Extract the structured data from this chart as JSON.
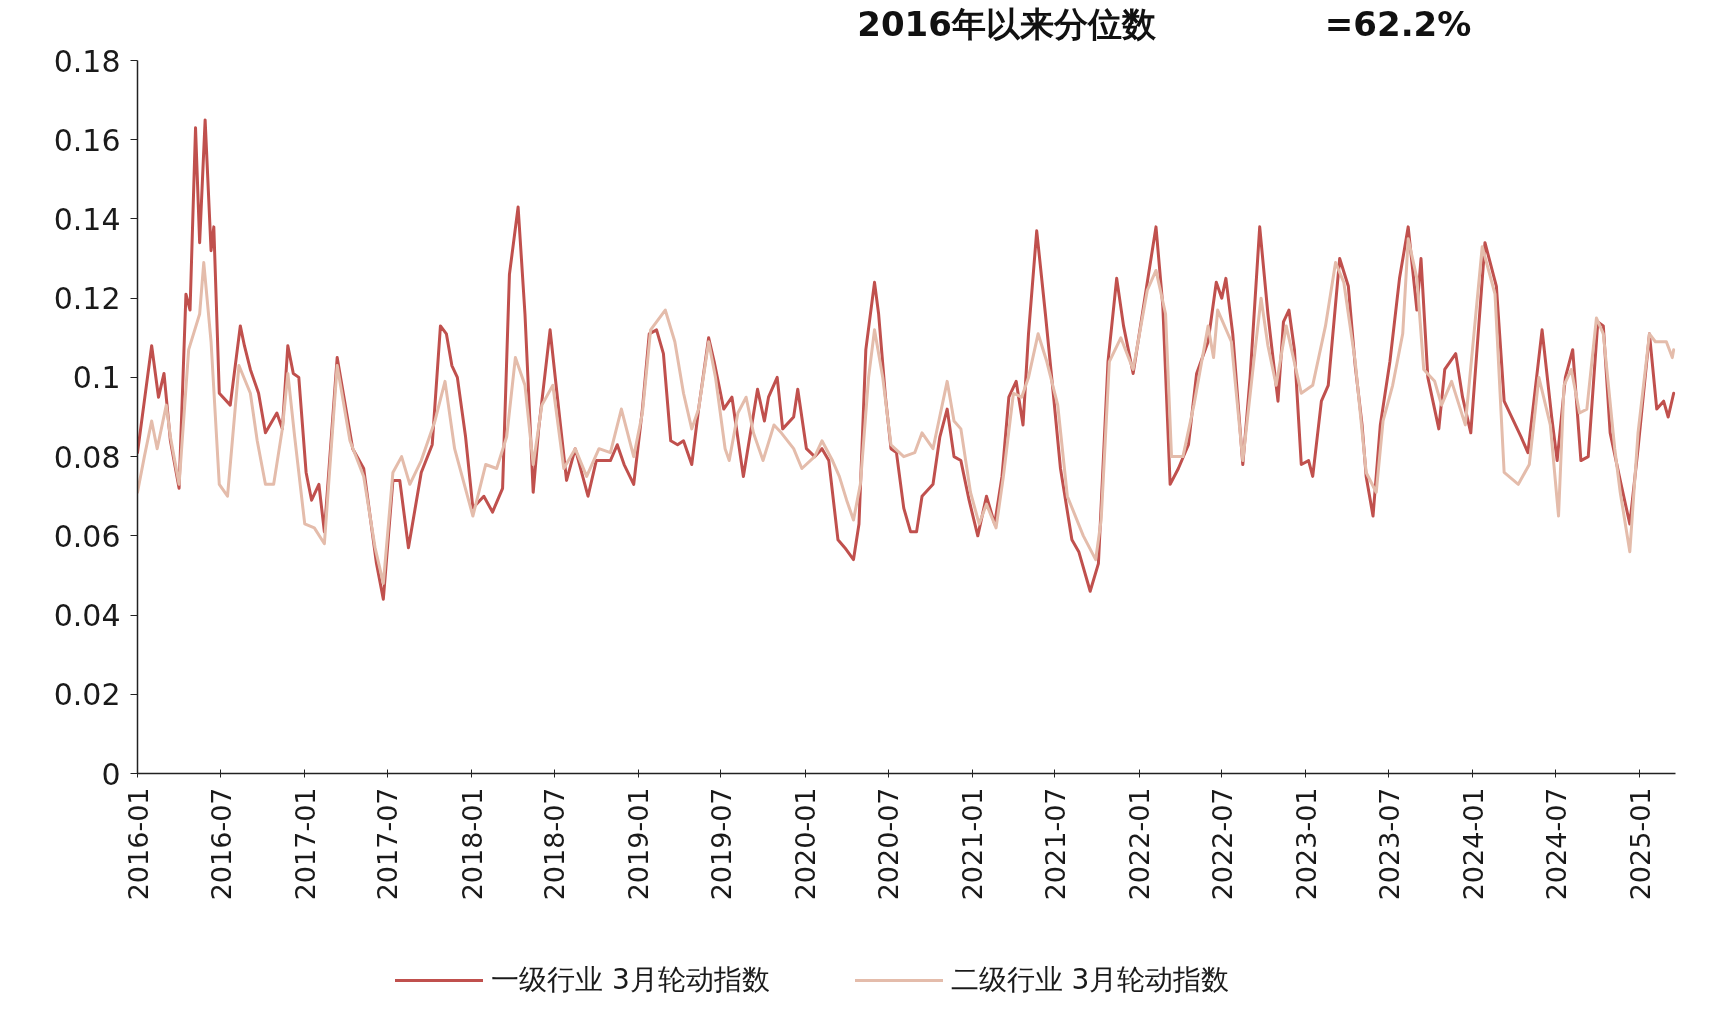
{
  "chart_data": {
    "type": "line",
    "title": "2016年以来分位数",
    "annotations": [
      "=62.2%"
    ],
    "xlim": [
      "2016-01-01",
      "2025-03-20"
    ],
    "xticks": [
      "2016-01",
      "2016-07",
      "2017-01",
      "2017-07",
      "2018-01",
      "2018-07",
      "2019-01",
      "2019-07",
      "2020-01",
      "2020-07",
      "2021-01",
      "2021-07",
      "2022-01",
      "2022-07",
      "2023-01",
      "2023-07",
      "2024-01",
      "2024-07",
      "2025-01"
    ],
    "ylim": [
      0,
      0.18
    ],
    "yticks": [
      0,
      0.02,
      0.04,
      0.06,
      0.08,
      0.1,
      0.12,
      0.14,
      0.16,
      0.18
    ],
    "legend": "bottom",
    "line_style": "solid",
    "series": [
      {
        "name": "一级行业 3月轮动指数",
        "color": "#c0504d",
        "x": [
          "2016-01-01",
          "2016-02-01",
          "2016-02-16",
          "2016-02-28",
          "2016-03-13",
          "2016-04-01",
          "2016-04-16",
          "2016-04-25",
          "2016-05-07",
          "2016-05-16",
          "2016-05-28",
          "2016-06-10",
          "2016-06-16",
          "2016-06-28",
          "2016-07-22",
          "2016-08-13",
          "2016-08-22",
          "2016-09-04",
          "2016-09-22",
          "2016-10-07",
          "2016-11-01",
          "2016-11-13",
          "2016-11-25",
          "2016-12-07",
          "2016-12-19",
          "2017-01-04",
          "2017-01-16",
          "2017-02-01",
          "2017-02-13",
          "2017-03-13",
          "2017-04-16",
          "2017-05-10",
          "2017-06-07",
          "2017-06-22",
          "2017-07-13",
          "2017-07-28",
          "2017-08-16",
          "2017-09-13",
          "2017-10-07",
          "2017-10-25",
          "2017-11-07",
          "2017-11-19",
          "2017-12-01",
          "2017-12-19",
          "2018-01-04",
          "2018-01-28",
          "2018-02-16",
          "2018-03-10",
          "2018-03-25",
          "2018-04-13",
          "2018-04-28",
          "2018-05-16",
          "2018-05-28",
          "2018-06-22",
          "2018-07-07",
          "2018-07-28",
          "2018-08-16",
          "2018-09-13",
          "2018-10-01",
          "2018-11-01",
          "2018-11-16",
          "2018-12-01",
          "2018-12-22",
          "2019-01-10",
          "2019-01-25",
          "2019-02-10",
          "2019-02-25",
          "2019-03-13",
          "2019-03-28",
          "2019-04-10",
          "2019-04-28",
          "2019-05-13",
          "2019-06-04",
          "2019-06-16",
          "2019-07-07",
          "2019-07-25",
          "2019-08-19",
          "2019-09-19",
          "2019-10-04",
          "2019-10-13",
          "2019-11-01",
          "2019-11-13",
          "2019-12-07",
          "2019-12-16",
          "2020-01-04",
          "2020-01-22",
          "2020-02-07",
          "2020-02-22",
          "2020-03-13",
          "2020-03-28",
          "2020-04-16",
          "2020-04-28",
          "2020-05-13",
          "2020-06-01",
          "2020-06-10",
          "2020-06-25",
          "2020-07-07",
          "2020-07-19",
          "2020-08-04",
          "2020-08-19",
          "2020-09-01",
          "2020-09-13",
          "2020-10-07",
          "2020-10-22",
          "2020-11-07",
          "2020-11-22",
          "2020-12-07",
          "2020-12-25",
          "2021-01-13",
          "2021-02-01",
          "2021-02-19",
          "2021-03-07",
          "2021-03-22",
          "2021-04-07",
          "2021-04-22",
          "2021-05-04",
          "2021-05-22",
          "2021-06-10",
          "2021-06-28",
          "2021-07-13",
          "2021-08-07",
          "2021-08-22",
          "2021-09-16",
          "2021-10-04",
          "2021-10-25",
          "2021-11-13",
          "2021-11-28",
          "2021-12-19",
          "2022-01-19",
          "2022-02-07",
          "2022-02-22",
          "2022-03-10",
          "2022-03-28",
          "2022-04-19",
          "2022-05-07",
          "2022-06-01",
          "2022-06-19",
          "2022-07-01",
          "2022-07-10",
          "2022-07-25",
          "2022-08-16",
          "2022-09-01",
          "2022-09-22",
          "2022-10-10",
          "2022-11-01",
          "2022-11-13",
          "2022-11-25",
          "2022-12-07",
          "2022-12-22",
          "2023-01-07",
          "2023-01-16",
          "2023-02-04",
          "2023-02-19",
          "2023-03-16",
          "2023-04-04",
          "2023-04-19",
          "2023-05-04",
          "2023-05-13",
          "2023-05-28",
          "2023-06-13",
          "2023-07-04",
          "2023-07-25",
          "2023-08-13",
          "2023-09-01",
          "2023-09-10",
          "2023-09-25",
          "2023-10-19",
          "2023-11-01",
          "2023-11-25",
          "2023-12-10",
          "2023-12-28",
          "2024-01-28",
          "2024-02-22",
          "2024-03-10",
          "2024-04-16",
          "2024-05-01",
          "2024-06-01",
          "2024-06-22",
          "2024-07-04",
          "2024-07-22",
          "2024-08-07",
          "2024-08-25",
          "2024-09-10",
          "2024-10-01",
          "2024-10-13",
          "2024-10-28",
          "2024-11-19",
          "2024-12-10",
          "2024-12-28",
          "2025-01-22",
          "2025-02-07",
          "2025-02-22",
          "2025-03-04",
          "2025-03-16"
        ],
        "values": [
          0.081,
          0.108,
          0.095,
          0.101,
          0.084,
          0.072,
          0.121,
          0.117,
          0.163,
          0.134,
          0.165,
          0.132,
          0.138,
          0.096,
          0.093,
          0.113,
          0.108,
          0.102,
          0.096,
          0.086,
          0.091,
          0.087,
          0.108,
          0.101,
          0.1,
          0.076,
          0.069,
          0.073,
          0.061,
          0.105,
          0.082,
          0.077,
          0.053,
          0.044,
          0.074,
          0.074,
          0.057,
          0.076,
          0.083,
          0.113,
          0.111,
          0.103,
          0.1,
          0.085,
          0.067,
          0.07,
          0.066,
          0.072,
          0.126,
          0.143,
          0.116,
          0.071,
          0.087,
          0.112,
          0.096,
          0.074,
          0.082,
          0.07,
          0.079,
          0.079,
          0.083,
          0.078,
          0.073,
          0.092,
          0.111,
          0.112,
          0.106,
          0.084,
          0.083,
          0.084,
          0.078,
          0.092,
          0.11,
          0.104,
          0.092,
          0.095,
          0.075,
          0.097,
          0.089,
          0.095,
          0.1,
          0.087,
          0.09,
          0.097,
          0.082,
          0.08,
          0.082,
          0.079,
          0.059,
          0.057,
          0.054,
          0.063,
          0.107,
          0.124,
          0.116,
          0.095,
          0.082,
          0.081,
          0.067,
          0.061,
          0.061,
          0.07,
          0.073,
          0.085,
          0.092,
          0.08,
          0.079,
          0.069,
          0.06,
          0.07,
          0.063,
          0.075,
          0.095,
          0.099,
          0.088,
          0.111,
          0.137,
          0.116,
          0.095,
          0.077,
          0.059,
          0.056,
          0.046,
          0.053,
          0.104,
          0.125,
          0.113,
          0.101,
          0.124,
          0.138,
          0.118,
          0.073,
          0.077,
          0.083,
          0.101,
          0.109,
          0.124,
          0.12,
          0.125,
          0.111,
          0.078,
          0.1,
          0.138,
          0.116,
          0.094,
          0.114,
          0.117,
          0.107,
          0.078,
          0.079,
          0.075,
          0.094,
          0.098,
          0.13,
          0.123,
          0.103,
          0.088,
          0.075,
          0.065,
          0.088,
          0.104,
          0.125,
          0.138,
          0.117,
          0.13,
          0.1,
          0.087,
          0.102,
          0.106,
          0.095,
          0.086,
          0.134,
          0.123,
          0.094,
          0.085,
          0.081,
          0.112,
          0.09,
          0.079,
          0.1,
          0.107,
          0.079,
          0.08,
          0.114,
          0.113,
          0.086,
          0.074,
          0.063,
          0.082,
          0.111,
          0.092,
          0.094,
          0.09,
          0.096
        ]
      },
      {
        "name": "二级行业 3月轮动指数",
        "color": "#e4bcab",
        "x": [
          "2016-01-01",
          "2016-01-16",
          "2016-02-01",
          "2016-02-13",
          "2016-03-04",
          "2016-03-13",
          "2016-04-01",
          "2016-04-22",
          "2016-05-16",
          "2016-05-25",
          "2016-06-10",
          "2016-06-28",
          "2016-07-16",
          "2016-08-10",
          "2016-09-04",
          "2016-09-19",
          "2016-10-07",
          "2016-10-25",
          "2016-11-13",
          "2016-11-25",
          "2016-12-10",
          "2017-01-01",
          "2017-01-22",
          "2017-02-13",
          "2017-03-13",
          "2017-04-10",
          "2017-05-10",
          "2017-06-04",
          "2017-06-22",
          "2017-07-13",
          "2017-08-01",
          "2017-08-19",
          "2017-09-13",
          "2017-10-13",
          "2017-11-04",
          "2017-11-25",
          "2018-01-04",
          "2018-02-01",
          "2018-02-25",
          "2018-03-19",
          "2018-04-07",
          "2018-04-28",
          "2018-05-16",
          "2018-06-04",
          "2018-06-28",
          "2018-07-22",
          "2018-08-16",
          "2018-09-10",
          "2018-10-07",
          "2018-11-01",
          "2018-11-25",
          "2018-12-22",
          "2019-01-10",
          "2019-01-28",
          "2019-03-01",
          "2019-03-22",
          "2019-04-10",
          "2019-04-28",
          "2019-05-13",
          "2019-06-04",
          "2019-06-19",
          "2019-07-10",
          "2019-07-19",
          "2019-08-07",
          "2019-08-25",
          "2019-09-10",
          "2019-10-01",
          "2019-10-25",
          "2019-11-10",
          "2019-12-07",
          "2019-12-25",
          "2020-01-22",
          "2020-02-07",
          "2020-03-01",
          "2020-03-16",
          "2020-04-01",
          "2020-04-16",
          "2020-05-01",
          "2020-05-19",
          "2020-06-01",
          "2020-06-19",
          "2020-07-07",
          "2020-08-04",
          "2020-08-28",
          "2020-09-13",
          "2020-10-07",
          "2020-11-07",
          "2020-11-22",
          "2020-12-07",
          "2020-12-28",
          "2021-01-16",
          "2021-02-01",
          "2021-02-22",
          "2021-03-10",
          "2021-04-01",
          "2021-04-19",
          "2021-05-04",
          "2021-05-25",
          "2021-06-13",
          "2021-07-07",
          "2021-07-28",
          "2021-09-01",
          "2021-09-28",
          "2021-10-10",
          "2021-10-28",
          "2021-11-22",
          "2021-12-19",
          "2022-01-19",
          "2022-02-07",
          "2022-02-28",
          "2022-03-13",
          "2022-04-07",
          "2022-05-01",
          "2022-06-01",
          "2022-06-13",
          "2022-06-22",
          "2022-07-22",
          "2022-08-16",
          "2022-09-10",
          "2022-09-25",
          "2022-10-10",
          "2022-10-28",
          "2022-11-19",
          "2022-12-22",
          "2023-01-16",
          "2023-02-13",
          "2023-03-07",
          "2023-03-25",
          "2023-04-19",
          "2023-05-13",
          "2023-06-04",
          "2023-06-19",
          "2023-07-10",
          "2023-08-01",
          "2023-08-13",
          "2023-09-01",
          "2023-09-16",
          "2023-10-10",
          "2023-10-25",
          "2023-11-16",
          "2023-12-16",
          "2024-01-22",
          "2024-02-19",
          "2024-03-10",
          "2024-04-10",
          "2024-05-04",
          "2024-05-25",
          "2024-06-19",
          "2024-07-07",
          "2024-07-19",
          "2024-08-04",
          "2024-08-22",
          "2024-09-07",
          "2024-09-28",
          "2024-10-13",
          "2024-11-07",
          "2024-11-19",
          "2024-12-10",
          "2024-12-28",
          "2025-01-22",
          "2025-02-04",
          "2025-02-28",
          "2025-03-13",
          "2025-03-16"
        ],
        "values": [
          0.071,
          0.08,
          0.089,
          0.082,
          0.093,
          0.085,
          0.073,
          0.107,
          0.116,
          0.129,
          0.109,
          0.073,
          0.07,
          0.103,
          0.096,
          0.084,
          0.073,
          0.073,
          0.087,
          0.101,
          0.085,
          0.063,
          0.062,
          0.058,
          0.103,
          0.084,
          0.075,
          0.057,
          0.048,
          0.076,
          0.08,
          0.073,
          0.079,
          0.089,
          0.099,
          0.082,
          0.065,
          0.078,
          0.077,
          0.085,
          0.105,
          0.098,
          0.078,
          0.093,
          0.098,
          0.077,
          0.082,
          0.075,
          0.082,
          0.081,
          0.092,
          0.08,
          0.091,
          0.112,
          0.117,
          0.109,
          0.096,
          0.087,
          0.092,
          0.109,
          0.1,
          0.082,
          0.079,
          0.091,
          0.095,
          0.086,
          0.079,
          0.088,
          0.086,
          0.082,
          0.077,
          0.08,
          0.084,
          0.079,
          0.075,
          0.069,
          0.064,
          0.073,
          0.1,
          0.112,
          0.1,
          0.083,
          0.08,
          0.081,
          0.086,
          0.082,
          0.099,
          0.089,
          0.087,
          0.071,
          0.063,
          0.068,
          0.062,
          0.075,
          0.096,
          0.095,
          0.1,
          0.111,
          0.104,
          0.093,
          0.07,
          0.06,
          0.054,
          0.064,
          0.104,
          0.11,
          0.102,
          0.122,
          0.127,
          0.116,
          0.08,
          0.08,
          0.093,
          0.113,
          0.105,
          0.117,
          0.109,
          0.079,
          0.105,
          0.12,
          0.108,
          0.098,
          0.113,
          0.096,
          0.098,
          0.113,
          0.129,
          0.124,
          0.104,
          0.076,
          0.071,
          0.089,
          0.098,
          0.111,
          0.135,
          0.125,
          0.102,
          0.099,
          0.093,
          0.099,
          0.088,
          0.133,
          0.121,
          0.076,
          0.073,
          0.078,
          0.1,
          0.088,
          0.065,
          0.098,
          0.102,
          0.091,
          0.092,
          0.115,
          0.111,
          0.082,
          0.071,
          0.056,
          0.086,
          0.111,
          0.109,
          0.109,
          0.105,
          0.107
        ]
      }
    ]
  }
}
